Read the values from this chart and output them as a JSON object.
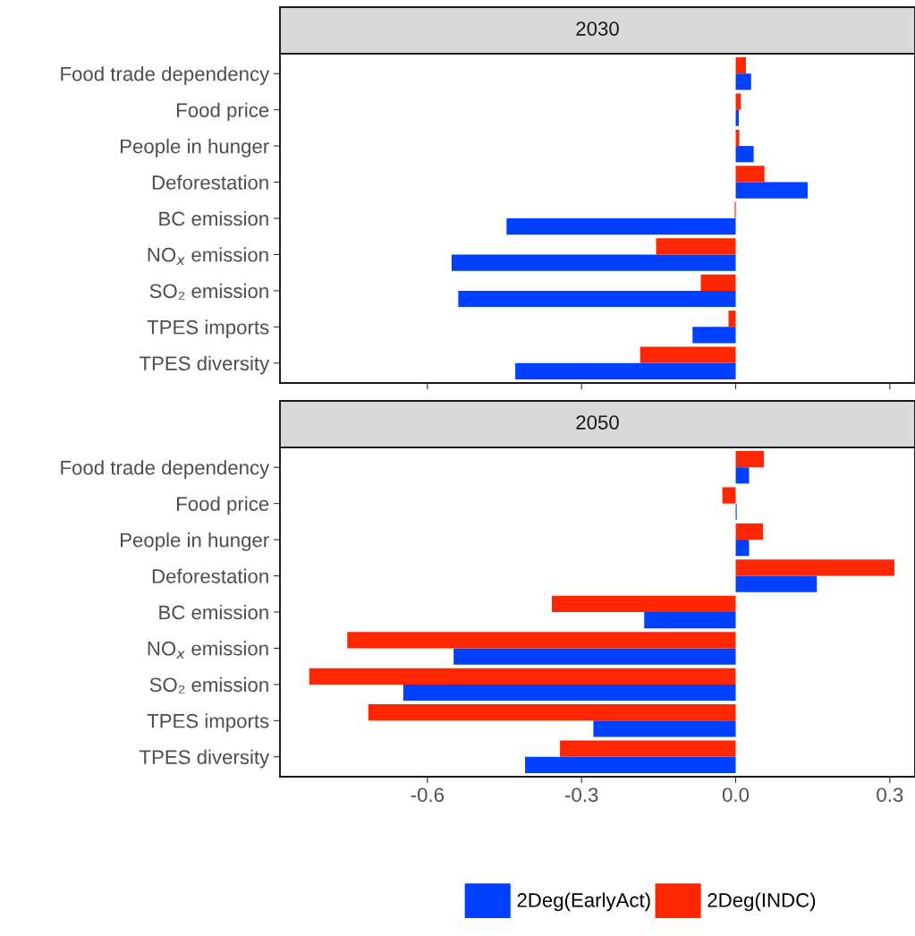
{
  "chart_data": [
    {
      "type": "bar",
      "orientation": "horizontal",
      "title": "2030",
      "categories": [
        "Food trade dependency",
        "Food price",
        "People in hunger",
        "Deforestation",
        "BC emission",
        "NO$_{x}$ emission",
        "SO₂ emission",
        "TPES imports",
        "TPES diversity"
      ],
      "series": [
        {
          "name": "2Deg(EarlyAct)",
          "color": "#0040ff",
          "values": [
            0.03,
            0.006,
            0.035,
            0.14,
            -0.446,
            -0.553,
            -0.54,
            -0.084,
            -0.429
          ]
        },
        {
          "name": "2Deg(INDC)",
          "color": "#ff2600",
          "values": [
            0.02,
            0.01,
            0.007,
            0.056,
            -0.002,
            -0.155,
            -0.068,
            -0.014,
            -0.186
          ]
        }
      ],
      "xlim": [
        -0.887,
        0.349
      ],
      "xticks": [
        -0.6,
        -0.3,
        0,
        0.3
      ],
      "tick_labels": "y",
      "legend": "bottom",
      "grid": false
    },
    {
      "type": "bar",
      "orientation": "horizontal",
      "title": "2050",
      "categories": [
        "Food trade dependency",
        "Food price",
        "People in hunger",
        "Deforestation",
        "BC emission",
        "NO$_{x}$ emission",
        "SO₂ emission",
        "TPES imports",
        "TPES diversity"
      ],
      "series": [
        {
          "name": "2Deg(EarlyAct)",
          "color": "#0040ff",
          "values": [
            0.026,
            0.002,
            0.026,
            0.158,
            -0.178,
            -0.549,
            -0.647,
            -0.277,
            -0.41
          ]
        },
        {
          "name": "2Deg(INDC)",
          "color": "#ff2600",
          "values": [
            0.055,
            -0.026,
            0.053,
            0.309,
            -0.358,
            -0.756,
            -0.83,
            -0.715,
            -0.342
          ]
        }
      ],
      "xlim": [
        -0.887,
        0.349
      ],
      "xticks": [
        {
          "value": -0.6,
          "label": "-0.6"
        },
        {
          "value": -0.3,
          "label": "-0.3"
        },
        {
          "value": 0,
          "label": "0.0"
        },
        {
          "value": 0.3,
          "label": "0.3"
        }
      ],
      "legend": "bottom",
      "grid": false
    }
  ]
}
